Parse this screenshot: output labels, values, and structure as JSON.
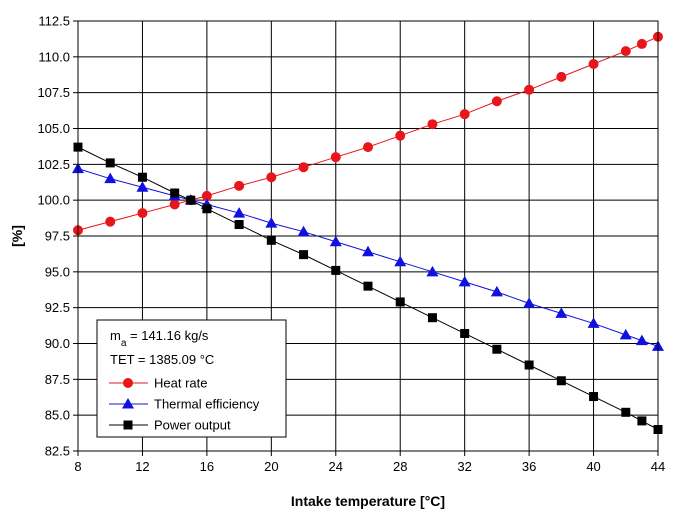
{
  "chart_data": {
    "type": "line",
    "xlabel": "Intake temperature [°C]",
    "ylabel": "[%]",
    "xlim": [
      8,
      44
    ],
    "ylim": [
      82.5,
      112.5
    ],
    "xticks": [
      "8",
      "12",
      "16",
      "20",
      "24",
      "28",
      "32",
      "36",
      "40",
      "44"
    ],
    "yticks": [
      "82.5",
      "85.0",
      "87.5",
      "90.0",
      "92.5",
      "95.0",
      "97.5",
      "100.0",
      "102.5",
      "105.0",
      "107.5",
      "110.0",
      "112.5"
    ],
    "grid": true,
    "legend_position": "bottom-left",
    "annotations": {
      "ma_main": "m",
      "ma_sub": "a",
      "ma_rest": " = 141.16 kg/s",
      "tet": "TET = 1385.09 °C"
    },
    "series": [
      {
        "name": "Heat rate",
        "color": "#e8161b",
        "marker": "circle",
        "x": [
          8,
          10,
          12,
          14,
          15,
          16,
          18,
          20,
          22,
          24,
          26,
          28,
          30,
          32,
          34,
          36,
          38,
          40,
          42,
          43,
          44
        ],
        "y": [
          97.9,
          98.5,
          99.1,
          99.7,
          100.0,
          100.3,
          101.0,
          101.6,
          102.3,
          103.0,
          103.7,
          104.5,
          105.3,
          106.0,
          106.9,
          107.7,
          108.6,
          109.5,
          110.4,
          110.9,
          111.4
        ]
      },
      {
        "name": "Thermal efficiency",
        "color": "#1010e0",
        "marker": "triangle",
        "x": [
          8,
          10,
          12,
          14,
          15,
          16,
          18,
          20,
          22,
          24,
          26,
          28,
          30,
          32,
          34,
          36,
          38,
          40,
          42,
          43,
          44
        ],
        "y": [
          102.2,
          101.5,
          100.9,
          100.3,
          100.0,
          99.7,
          99.1,
          98.4,
          97.8,
          97.1,
          96.4,
          95.7,
          95.0,
          94.3,
          93.6,
          92.8,
          92.1,
          91.4,
          90.6,
          90.2,
          89.8
        ]
      },
      {
        "name": "Power output",
        "color": "#000000",
        "marker": "square",
        "x": [
          8,
          10,
          12,
          14,
          15,
          16,
          18,
          20,
          22,
          24,
          26,
          28,
          30,
          32,
          34,
          36,
          38,
          40,
          42,
          43,
          44
        ],
        "y": [
          103.7,
          102.6,
          101.6,
          100.5,
          100.0,
          99.4,
          98.3,
          97.2,
          96.2,
          95.1,
          94.0,
          92.9,
          91.8,
          90.7,
          89.6,
          88.5,
          87.4,
          86.3,
          85.2,
          84.6,
          84.0
        ]
      }
    ]
  }
}
